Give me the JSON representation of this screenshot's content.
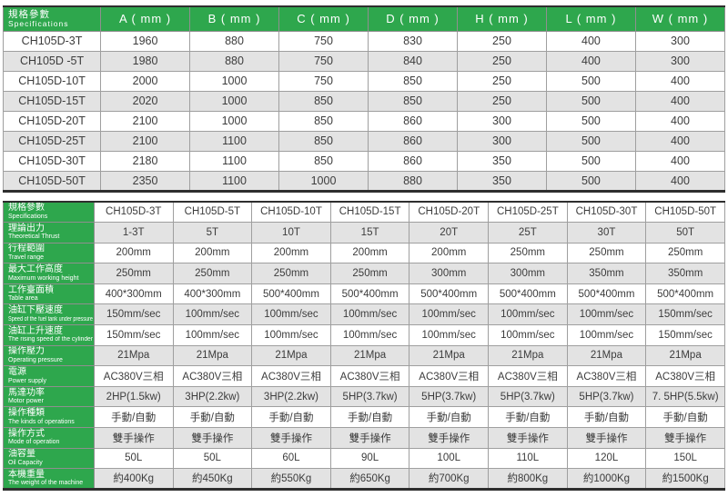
{
  "colors": {
    "header_green": "#2ea74d",
    "alt_row_gray": "#e3e3e3",
    "text": "#3c3c3c",
    "heavy_border": "#2e2e2e"
  },
  "dimensions_table": {
    "corner": {
      "zh": "規格參數",
      "en": "Specifications"
    },
    "columns": [
      "A ( mm )",
      "B ( mm )",
      "C ( mm )",
      "D ( mm )",
      "H ( mm )",
      "L ( mm )",
      "W ( mm )"
    ],
    "rows": [
      {
        "model": "CH105D-3T",
        "values": [
          "1960",
          "880",
          "750",
          "830",
          "250",
          "400",
          "300"
        ]
      },
      {
        "model": "CH105D -5T",
        "values": [
          "1980",
          "880",
          "750",
          "840",
          "250",
          "400",
          "300"
        ]
      },
      {
        "model": "CH105D-10T",
        "values": [
          "2000",
          "1000",
          "750",
          "850",
          "250",
          "500",
          "400"
        ]
      },
      {
        "model": "CH105D-15T",
        "values": [
          "2020",
          "1000",
          "850",
          "850",
          "250",
          "500",
          "400"
        ]
      },
      {
        "model": "CH105D-20T",
        "values": [
          "2100",
          "1000",
          "850",
          "860",
          "300",
          "500",
          "400"
        ]
      },
      {
        "model": "CH105D-25T",
        "values": [
          "2100",
          "1100",
          "850",
          "860",
          "300",
          "500",
          "400"
        ]
      },
      {
        "model": "CH105D-30T",
        "values": [
          "2180",
          "1100",
          "850",
          "860",
          "350",
          "500",
          "400"
        ]
      },
      {
        "model": "CH105D-50T",
        "values": [
          "2350",
          "1100",
          "1000",
          "880",
          "350",
          "500",
          "400"
        ]
      }
    ]
  },
  "specs_table": {
    "corner": {
      "zh": "規格參數",
      "en": "Specifications"
    },
    "models": [
      "CH105D-3T",
      "CH105D-5T",
      "CH105D-10T",
      "CH105D-15T",
      "CH105D-20T",
      "CH105D-25T",
      "CH105D-30T",
      "CH105D-50T"
    ],
    "rows": [
      {
        "zh": "理論出力",
        "en": "Theoretical Thrust",
        "values": [
          "1-3T",
          "5T",
          "10T",
          "15T",
          "20T",
          "25T",
          "30T",
          "50T"
        ]
      },
      {
        "zh": "行程範圍",
        "en": "Travel range",
        "values": [
          "200mm",
          "200mm",
          "200mm",
          "200mm",
          "200mm",
          "250mm",
          "250mm",
          "250mm"
        ]
      },
      {
        "zh": "最大工作高度",
        "en": "Maximum working height",
        "values": [
          "250mm",
          "250mm",
          "250mm",
          "250mm",
          "300mm",
          "300mm",
          "350mm",
          "350mm"
        ]
      },
      {
        "zh": "工作臺面積",
        "en": "Table area",
        "values": [
          "400*300mm",
          "400*300mm",
          "500*400mm",
          "500*400mm",
          "500*400mm",
          "500*400mm",
          "500*400mm",
          "500*400mm"
        ]
      },
      {
        "zh": "油缸下壓速度",
        "en": "Speed of the fuel tank under pressure",
        "values": [
          "150mm/sec",
          "100mm/sec",
          "100mm/sec",
          "100mm/sec",
          "100mm/sec",
          "100mm/sec",
          "100mm/sec",
          "150mm/sec"
        ]
      },
      {
        "zh": "油缸上升速度",
        "en": "The rising speed of the cylinder",
        "values": [
          "150mm/sec",
          "100mm/sec",
          "100mm/sec",
          "100mm/sec",
          "100mm/sec",
          "100mm/sec",
          "100mm/sec",
          "150mm/sec"
        ]
      },
      {
        "zh": "操作壓力",
        "en": "Operating pressure",
        "values": [
          "21Mpa",
          "21Mpa",
          "21Mpa",
          "21Mpa",
          "21Mpa",
          "21Mpa",
          "21Mpa",
          "21Mpa"
        ]
      },
      {
        "zh": "電源",
        "en": "Power supply",
        "values": [
          "AC380V三相",
          "AC380V三相",
          "AC380V三相",
          "AC380V三相",
          "AC380V三相",
          "AC380V三相",
          "AC380V三相",
          "AC380V三相"
        ]
      },
      {
        "zh": "馬達功率",
        "en": "Motor power",
        "values": [
          "2HP(1.5kw)",
          "3HP(2.2kw)",
          "3HP(2.2kw)",
          "5HP(3.7kw)",
          "5HP(3.7kw)",
          "5HP(3.7kw)",
          "5HP(3.7kw)",
          "7. 5HP(5.5kw)"
        ]
      },
      {
        "zh": "操作種類",
        "en": "The kinds of operations",
        "values": [
          "手動/自動",
          "手動/自動",
          "手動/自動",
          "手動/自動",
          "手動/自動",
          "手動/自動",
          "手動/自動",
          "手動/自動"
        ]
      },
      {
        "zh": "操作方式",
        "en": "Mode of operation",
        "values": [
          "雙手操作",
          "雙手操作",
          "雙手操作",
          "雙手操作",
          "雙手操作",
          "雙手操作",
          "雙手操作",
          "雙手操作"
        ]
      },
      {
        "zh": "油容量",
        "en": "Oil Capacity",
        "values": [
          "50L",
          "50L",
          "60L",
          "90L",
          "100L",
          "110L",
          "120L",
          "150L"
        ]
      },
      {
        "zh": "本機重量",
        "en": "The weight of the machine",
        "values": [
          "約400Kg",
          "約450Kg",
          "約550Kg",
          "約650Kg",
          "約700Kg",
          "約800Kg",
          "約1000Kg",
          "約1500Kg"
        ]
      }
    ]
  }
}
